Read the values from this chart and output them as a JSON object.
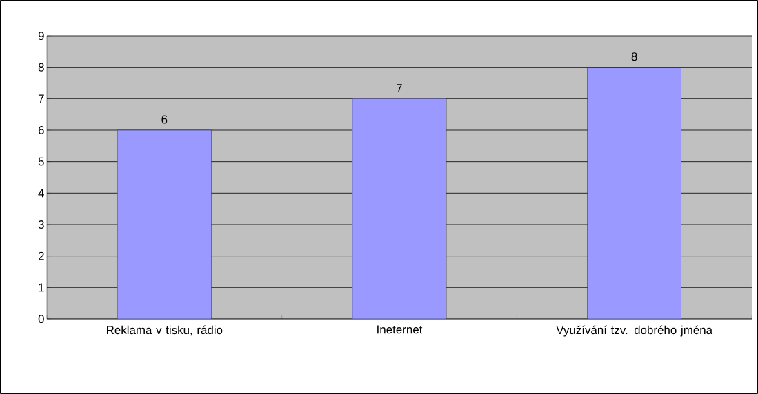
{
  "chart_data": {
    "type": "bar",
    "categories": [
      "Reklama v tisku, rádio",
      "Ineternet",
      "Využívání tzv. dobrého jména"
    ],
    "values": [
      6,
      7,
      8
    ],
    "color": "#9999ff",
    "ylim": [
      0,
      9
    ],
    "yticks": [
      0,
      1,
      2,
      3,
      4,
      5,
      6,
      7,
      8,
      9
    ],
    "grid": "y",
    "data_labels": true
  }
}
